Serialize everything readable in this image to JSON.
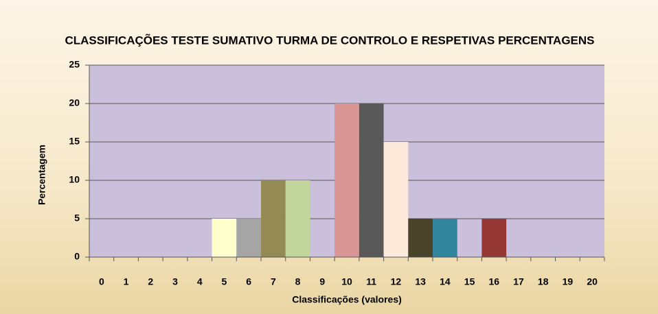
{
  "chart_data": {
    "type": "bar",
    "title": "CLASSIFICAÇÕES TESTE SUMATIVO TURMA DE CONTROLO E RESPETIVAS PERCENTAGENS",
    "x_label": "Classificações (valores)",
    "y_label": "Percentagem",
    "categories": [
      "0",
      "1",
      "2",
      "3",
      "4",
      "5",
      "6",
      "7",
      "8",
      "9",
      "10",
      "11",
      "12",
      "13",
      "14",
      "15",
      "16",
      "17",
      "18",
      "19",
      "20"
    ],
    "values": [
      0,
      0,
      0,
      0,
      0,
      5,
      5,
      10,
      10,
      0,
      20,
      20,
      15,
      5,
      5,
      0,
      5,
      0,
      0,
      0,
      0
    ],
    "colors": [
      null,
      null,
      null,
      null,
      null,
      "#ffffcc",
      "#a5a5a5",
      "#948a54",
      "#c3d69b",
      null,
      "#d99694",
      "#595959",
      "#fde9d9",
      "#494429",
      "#31859c",
      null,
      "#953735",
      null,
      null,
      null,
      null
    ],
    "ylim": [
      0,
      25
    ],
    "yticks": [
      0,
      5,
      10,
      15,
      20,
      25
    ],
    "grid": true
  }
}
